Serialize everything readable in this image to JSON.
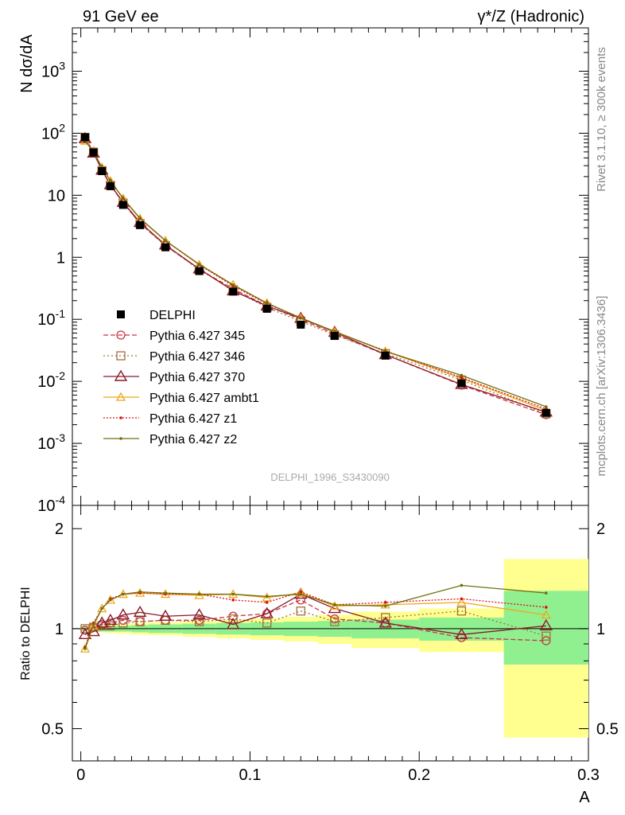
{
  "header": {
    "left": "91 GeV ee",
    "right": "γ*/Z (Hadronic)"
  },
  "side_text": {
    "rivet": "Rivet 3.1.10, ≥ 300k events",
    "mcplots": "mcplots.cern.ch [arXiv:1306.3436]"
  },
  "analysis_id": "DELPHI_1996_S3430090",
  "colors": {
    "data": "#000000",
    "p345": "#cc3344",
    "p346": "#a0703a",
    "p370": "#8b1a2b",
    "ambt1": "#f0a818",
    "z1": "#dd1111",
    "z2": "#707010",
    "band_green": "#90f090",
    "band_yellow": "#ffff90"
  },
  "chart_data": [
    {
      "type": "line",
      "ylabel": "N dσ/dA",
      "yscale": "log",
      "ylim": [
        0.0001,
        5000
      ],
      "xlim": [
        -0.005,
        0.3
      ],
      "y_tick_labels": [
        "10^-4",
        "10^-3",
        "10^-2",
        "10^-1",
        "1",
        "10",
        "10^2",
        "10^3"
      ],
      "x": [
        0.0025,
        0.0075,
        0.0125,
        0.0175,
        0.025,
        0.035,
        0.05,
        0.07,
        0.09,
        0.11,
        0.13,
        0.15,
        0.18,
        0.225,
        0.275
      ],
      "series": [
        {
          "name": "DELPHI",
          "values": [
            86,
            49,
            24.5,
            14,
            7,
            3.3,
            1.45,
            0.6,
            0.28,
            0.148,
            0.082,
            0.054,
            0.026,
            0.0093,
            0.0031
          ]
        },
        {
          "name": "Pythia 6.427 345",
          "values": [
            85,
            49.5,
            25,
            14.5,
            7.6,
            3.5,
            1.55,
            0.64,
            0.31,
            0.165,
            0.1,
            0.058,
            0.027,
            0.0087,
            0.0029
          ]
        },
        {
          "name": "Pythia 6.427 346",
          "values": [
            86,
            49.5,
            25,
            14.5,
            7.5,
            3.5,
            1.55,
            0.63,
            0.3,
            0.155,
            0.093,
            0.056,
            0.028,
            0.0105,
            0.003
          ]
        },
        {
          "name": "Pythia 6.427 370",
          "values": [
            82,
            48,
            25.5,
            14.8,
            7.7,
            3.65,
            1.58,
            0.65,
            0.288,
            0.164,
            0.104,
            0.062,
            0.027,
            0.0089,
            0.0032
          ]
        },
        {
          "name": "Pythia 6.427 ambt1",
          "values": [
            75,
            50,
            28,
            17,
            8.9,
            4.2,
            1.85,
            0.76,
            0.36,
            0.183,
            0.105,
            0.063,
            0.0305,
            0.0112,
            0.0034
          ]
        },
        {
          "name": "Pythia 6.427 z1",
          "values": [
            76,
            51,
            28,
            17.2,
            8.8,
            4.2,
            1.85,
            0.76,
            0.345,
            0.178,
            0.106,
            0.063,
            0.031,
            0.0115,
            0.0036
          ]
        },
        {
          "name": "Pythia 6.427 z2",
          "values": [
            75,
            50.5,
            28,
            17.1,
            8.9,
            4.25,
            1.86,
            0.77,
            0.36,
            0.182,
            0.105,
            0.064,
            0.0305,
            0.0125,
            0.0039
          ]
        }
      ]
    },
    {
      "type": "line",
      "xlabel": "A",
      "ylabel": "Ratio to DELPHI",
      "ylim": [
        0.4,
        2.35
      ],
      "xlim": [
        -0.005,
        0.3
      ],
      "x_tick_labels": [
        "0",
        "0.1",
        "0.2",
        "0.3"
      ],
      "y_tick_labels": [
        "0.5",
        "1",
        "2"
      ],
      "x": [
        0.0025,
        0.0075,
        0.0125,
        0.0175,
        0.025,
        0.035,
        0.05,
        0.07,
        0.09,
        0.11,
        0.13,
        0.15,
        0.18,
        0.225,
        0.275
      ],
      "bins": [
        [
          0,
          0.005
        ],
        [
          0.005,
          0.01
        ],
        [
          0.01,
          0.015
        ],
        [
          0.015,
          0.02
        ],
        [
          0.02,
          0.03
        ],
        [
          0.03,
          0.04
        ],
        [
          0.04,
          0.06
        ],
        [
          0.06,
          0.08
        ],
        [
          0.08,
          0.1
        ],
        [
          0.1,
          0.12
        ],
        [
          0.12,
          0.14
        ],
        [
          0.14,
          0.16
        ],
        [
          0.16,
          0.2
        ],
        [
          0.2,
          0.25
        ],
        [
          0.25,
          0.3
        ]
      ],
      "band_inner": [
        [
          0.985,
          1.015
        ],
        [
          0.985,
          1.015
        ],
        [
          0.98,
          1.02
        ],
        [
          0.98,
          1.02
        ],
        [
          0.98,
          1.02
        ],
        [
          0.975,
          1.025
        ],
        [
          0.97,
          1.03
        ],
        [
          0.965,
          1.035
        ],
        [
          0.96,
          1.04
        ],
        [
          0.955,
          1.045
        ],
        [
          0.95,
          1.05
        ],
        [
          0.945,
          1.055
        ],
        [
          0.935,
          1.065
        ],
        [
          0.92,
          1.08
        ],
        [
          0.78,
          1.3
        ]
      ],
      "band_outer": [
        [
          0.985,
          1.015
        ],
        [
          0.98,
          1.02
        ],
        [
          0.975,
          1.025
        ],
        [
          0.97,
          1.03
        ],
        [
          0.965,
          1.035
        ],
        [
          0.96,
          1.04
        ],
        [
          0.955,
          1.045
        ],
        [
          0.945,
          1.055
        ],
        [
          0.935,
          1.065
        ],
        [
          0.925,
          1.075
        ],
        [
          0.915,
          1.085
        ],
        [
          0.9,
          1.1
        ],
        [
          0.875,
          1.125
        ],
        [
          0.85,
          1.15
        ],
        [
          0.47,
          1.62
        ]
      ],
      "series": [
        {
          "name": "Pythia 6.427 345",
          "values": [
            0.99,
            1.01,
            1.03,
            1.04,
            1.06,
            1.05,
            1.06,
            1.06,
            1.09,
            1.11,
            1.22,
            1.07,
            1.04,
            0.94,
            0.92
          ]
        },
        {
          "name": "Pythia 6.427 346",
          "values": [
            1.0,
            1.01,
            1.02,
            1.02,
            1.04,
            1.05,
            1.06,
            1.05,
            1.07,
            1.04,
            1.13,
            1.05,
            1.08,
            1.13,
            0.95
          ]
        },
        {
          "name": "Pythia 6.427 370",
          "values": [
            0.96,
            0.98,
            1.04,
            1.06,
            1.1,
            1.12,
            1.09,
            1.1,
            1.03,
            1.11,
            1.27,
            1.15,
            1.04,
            0.96,
            1.02
          ]
        },
        {
          "name": "Pythia 6.427 ambt1",
          "values": [
            0.87,
            1.02,
            1.15,
            1.22,
            1.27,
            1.28,
            1.27,
            1.26,
            1.27,
            1.24,
            1.28,
            1.17,
            1.18,
            1.2,
            1.1
          ]
        },
        {
          "name": "Pythia 6.427 z1",
          "values": [
            0.88,
            1.04,
            1.15,
            1.23,
            1.27,
            1.28,
            1.27,
            1.27,
            1.22,
            1.2,
            1.29,
            1.18,
            1.2,
            1.23,
            1.16
          ]
        },
        {
          "name": "Pythia 6.427 z2",
          "values": [
            0.87,
            1.03,
            1.15,
            1.22,
            1.27,
            1.29,
            1.28,
            1.27,
            1.27,
            1.25,
            1.27,
            1.18,
            1.17,
            1.35,
            1.28
          ]
        }
      ]
    }
  ]
}
